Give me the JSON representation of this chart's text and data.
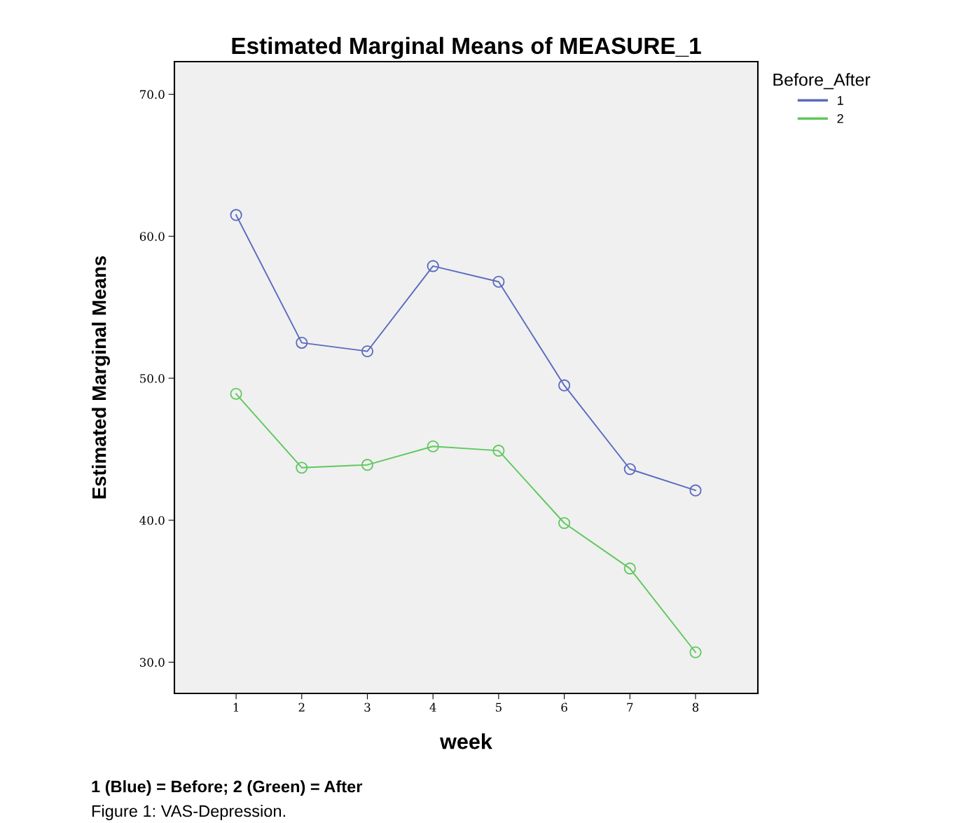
{
  "chart_data": {
    "type": "line",
    "title": "Estimated Marginal Means of MEASURE_1",
    "xlabel": "week",
    "ylabel": "Estimated Marginal Means",
    "legend_title": "Before_After",
    "categories": [
      "1",
      "2",
      "3",
      "4",
      "5",
      "6",
      "7",
      "8"
    ],
    "series": [
      {
        "name": "1",
        "color": "#5b6bbf",
        "values": [
          61.5,
          52.5,
          51.9,
          57.9,
          56.8,
          49.5,
          43.6,
          42.1
        ]
      },
      {
        "name": "2",
        "color": "#5fc85f",
        "values": [
          48.9,
          43.7,
          43.9,
          45.2,
          44.9,
          39.8,
          36.6,
          30.7
        ]
      }
    ],
    "ylim": [
      27.8,
      72.3
    ],
    "yticks": [
      {
        "value": 30,
        "label": "30.0"
      },
      {
        "value": 40,
        "label": "40.0"
      },
      {
        "value": 50,
        "label": "50.0"
      },
      {
        "value": 60,
        "label": "60.0"
      },
      {
        "value": 70,
        "label": "70.0"
      }
    ],
    "marker": "circle",
    "line_style": "solid",
    "grid": false,
    "legend": "top right",
    "annotations": [
      "1 (Blue) = Before; 2 (Green) = After",
      "Figure 1: VAS-Depression."
    ]
  }
}
